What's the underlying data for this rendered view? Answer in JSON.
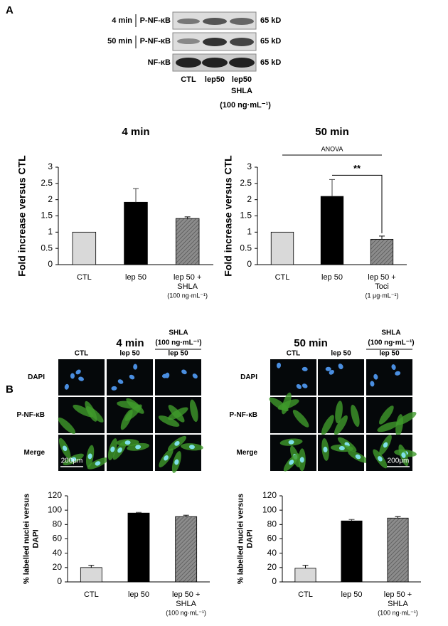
{
  "panel_labels": [
    "A",
    "B"
  ],
  "blot": {
    "rows": [
      {
        "time": "4 min",
        "protein": "P-NF-κB",
        "size": "65 kD"
      },
      {
        "time": "50 min",
        "protein": "P-NF-κB",
        "size": "65 kD"
      },
      {
        "protein": "NF-κB",
        "size": "65 kD"
      }
    ],
    "lanes": [
      [
        "CTL"
      ],
      [
        "lep50"
      ],
      [
        "lep50",
        "SHLA"
      ]
    ],
    "treatment_note": "(100 ng·mL⁻¹)"
  },
  "chart_data": [
    {
      "type": "bar",
      "title": "4 min",
      "ylabel": [
        "Fold increase versus CTL"
      ],
      "categories": [
        [
          "CTL"
        ],
        [
          "lep 50"
        ],
        [
          "lep 50 +",
          "SHLA",
          "(100 ng·mL⁻¹)"
        ]
      ],
      "values": [
        1,
        1.92,
        1.42
      ],
      "errors": [
        null,
        0.42,
        0.05
      ],
      "colors": [
        "#d9d9d9",
        "#000000",
        "#7f7f7f"
      ],
      "hatched": [
        false,
        false,
        true
      ],
      "ylim": [
        0,
        3
      ],
      "yticks": [
        0,
        0.5,
        1,
        1.5,
        2,
        2.5,
        3
      ]
    },
    {
      "type": "bar",
      "title": "50 min",
      "ylabel": [
        "Fold increase versus CTL"
      ],
      "categories": [
        [
          "CTL"
        ],
        [
          "lep 50"
        ],
        [
          "lep 50 +",
          "Toci",
          "(1 μg·mL⁻¹)"
        ]
      ],
      "values": [
        1,
        2.1,
        0.78
      ],
      "errors": [
        null,
        0.52,
        0.1
      ],
      "colors": [
        "#d9d9d9",
        "#000000",
        "#7f7f7f"
      ],
      "hatched": [
        false,
        false,
        true
      ],
      "ylim": [
        0,
        3
      ],
      "yticks": [
        0,
        0.5,
        1,
        1.5,
        2,
        2.5,
        3
      ],
      "annotations": [
        "ANOVA",
        "**"
      ]
    },
    {
      "type": "bar",
      "ylabel": [
        "% labelled nuclei versus",
        "DAPI"
      ],
      "categories": [
        [
          "CTL"
        ],
        [
          "lep 50"
        ],
        [
          "lep 50 +",
          "SHLA",
          "(100 ng·mL⁻¹)"
        ]
      ],
      "values": [
        20,
        96,
        91
      ],
      "errors": [
        3,
        1,
        2
      ],
      "colors": [
        "#d9d9d9",
        "#000000",
        "#7f7f7f"
      ],
      "hatched": [
        false,
        false,
        true
      ],
      "ylim": [
        0,
        120
      ],
      "yticks": [
        0,
        20,
        40,
        60,
        80,
        100,
        120
      ]
    },
    {
      "type": "bar",
      "ylabel": [
        "% labelled nuclei versus",
        "DAPI"
      ],
      "categories": [
        [
          "CTL"
        ],
        [
          "lep 50"
        ],
        [
          "lep 50 +",
          "SHLA",
          "(100 ng·mL⁻¹)"
        ]
      ],
      "values": [
        19,
        85,
        89
      ],
      "errors": [
        4,
        2,
        2
      ],
      "colors": [
        "#d9d9d9",
        "#000000",
        "#7f7f7f"
      ],
      "hatched": [
        false,
        false,
        true
      ],
      "ylim": [
        0,
        120
      ],
      "yticks": [
        0,
        20,
        40,
        60,
        80,
        100,
        120
      ]
    }
  ],
  "micrographs": [
    {
      "title": "4 min",
      "treatment": [
        "SHLA",
        "(100 ng·mL⁻¹)"
      ],
      "columns": [
        "CTL",
        "lep 50",
        "lep 50"
      ],
      "rows": [
        "DAPI",
        "P-NF-κB",
        "Merge"
      ],
      "scale_bar": "200μm"
    },
    {
      "title": "50 min",
      "treatment": [
        "SHLA",
        "(100 ng·mL⁻¹)"
      ],
      "columns": [
        "CTL",
        "lep 50",
        "lep 50"
      ],
      "rows": [
        "DAPI",
        "P-NF-κB",
        "Merge"
      ],
      "scale_bar": "200μm"
    }
  ]
}
